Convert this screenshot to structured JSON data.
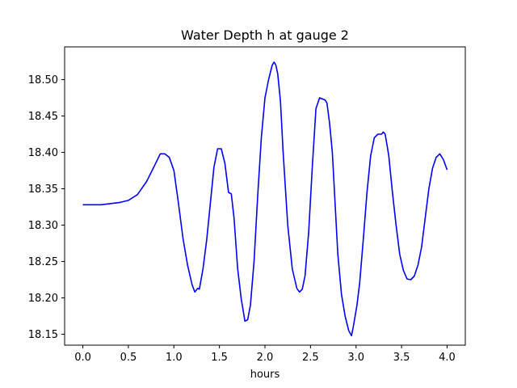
{
  "chart_data": {
    "type": "line",
    "title": "Water Depth h at gauge 2",
    "xlabel": "hours",
    "ylabel": "",
    "xlim": [
      -0.2,
      4.2
    ],
    "ylim": [
      18.135,
      18.545
    ],
    "xticks": [
      0.0,
      0.5,
      1.0,
      1.5,
      2.0,
      2.5,
      3.0,
      3.5,
      4.0
    ],
    "xtick_labels": [
      "0.0",
      "0.5",
      "1.0",
      "1.5",
      "2.0",
      "2.5",
      "3.0",
      "3.5",
      "4.0"
    ],
    "yticks": [
      18.15,
      18.2,
      18.25,
      18.3,
      18.35,
      18.4,
      18.45,
      18.5
    ],
    "ytick_labels": [
      "18.15",
      "18.20",
      "18.25",
      "18.30",
      "18.35",
      "18.40",
      "18.45",
      "18.50"
    ],
    "grid": false,
    "series": [
      {
        "color": "#0000ff",
        "x": [
          0.0,
          0.2,
          0.4,
          0.5,
          0.6,
          0.7,
          0.78,
          0.85,
          0.9,
          0.95,
          1.0,
          1.05,
          1.1,
          1.15,
          1.2,
          1.23,
          1.26,
          1.28,
          1.32,
          1.36,
          1.4,
          1.44,
          1.48,
          1.52,
          1.56,
          1.6,
          1.63,
          1.66,
          1.7,
          1.74,
          1.78,
          1.81,
          1.84,
          1.88,
          1.92,
          1.96,
          2.0,
          2.04,
          2.08,
          2.1,
          2.12,
          2.14,
          2.17,
          2.2,
          2.25,
          2.3,
          2.35,
          2.38,
          2.41,
          2.44,
          2.48,
          2.52,
          2.56,
          2.6,
          2.64,
          2.66,
          2.68,
          2.71,
          2.74,
          2.77,
          2.8,
          2.84,
          2.88,
          2.92,
          2.95,
          2.97,
          2.99,
          3.01,
          3.04,
          3.08,
          3.12,
          3.16,
          3.2,
          3.24,
          3.28,
          3.3,
          3.32,
          3.34,
          3.36,
          3.4,
          3.44,
          3.48,
          3.52,
          3.56,
          3.6,
          3.64,
          3.68,
          3.72,
          3.76,
          3.8,
          3.84,
          3.88,
          3.92,
          3.96,
          4.0
        ],
        "y": [
          18.328,
          18.328,
          18.331,
          18.334,
          18.342,
          18.36,
          18.38,
          18.398,
          18.398,
          18.393,
          18.375,
          18.33,
          18.282,
          18.245,
          18.218,
          18.208,
          18.213,
          18.212,
          18.24,
          18.28,
          18.33,
          18.38,
          18.405,
          18.405,
          18.385,
          18.345,
          18.343,
          18.31,
          18.24,
          18.198,
          18.168,
          18.17,
          18.19,
          18.25,
          18.34,
          18.42,
          18.475,
          18.5,
          18.52,
          18.524,
          18.52,
          18.508,
          18.47,
          18.4,
          18.3,
          18.24,
          18.213,
          18.208,
          18.212,
          18.23,
          18.29,
          18.38,
          18.46,
          18.475,
          18.473,
          18.472,
          18.468,
          18.44,
          18.4,
          18.33,
          18.26,
          18.205,
          18.175,
          18.155,
          18.148,
          18.16,
          18.175,
          18.19,
          18.22,
          18.28,
          18.345,
          18.395,
          18.42,
          18.425,
          18.425,
          18.428,
          18.425,
          18.41,
          18.395,
          18.345,
          18.3,
          18.26,
          18.238,
          18.226,
          18.225,
          18.23,
          18.245,
          18.27,
          18.31,
          18.35,
          18.378,
          18.393,
          18.398,
          18.39,
          18.376
        ]
      }
    ]
  }
}
